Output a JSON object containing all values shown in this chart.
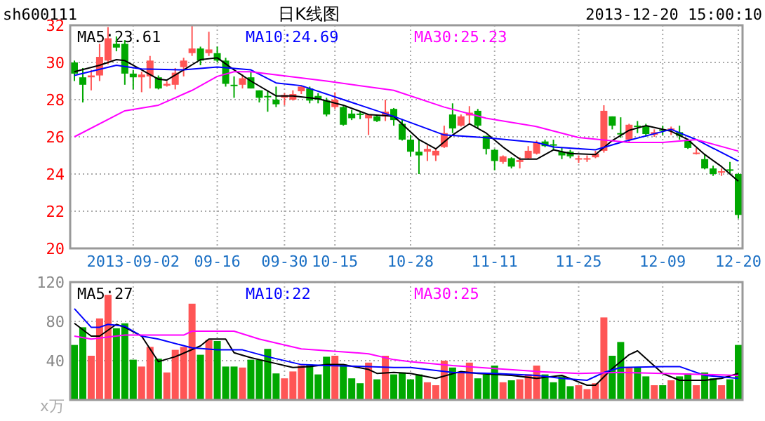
{
  "chart_data": [
    {
      "type": "candlestick",
      "title": "日K线图",
      "annotations": [
        "sh600111",
        "2013-12-20 15:00:10"
      ],
      "ylim": [
        20,
        32
      ],
      "yticks": [
        20,
        22,
        24,
        26,
        28,
        30,
        32
      ],
      "grid": true,
      "legend": "top",
      "categories": [
        null,
        null,
        null,
        null,
        null,
        null,
        null,
        "2013-09-02",
        null,
        null,
        null,
        null,
        null,
        null,
        null,
        null,
        null,
        "09-16",
        null,
        null,
        null,
        null,
        null,
        null,
        null,
        "09-30",
        null,
        null,
        null,
        null,
        null,
        "10-15",
        null,
        null,
        null,
        null,
        null,
        null,
        null,
        null,
        "10-28",
        null,
        null,
        null,
        null,
        null,
        null,
        null,
        null,
        null,
        "11-11",
        null,
        null,
        null,
        null,
        null,
        null,
        null,
        null,
        null,
        "11-25",
        null,
        null,
        null,
        null,
        null,
        null,
        null,
        null,
        null,
        "12-09",
        null,
        null,
        null,
        null,
        null,
        null,
        null,
        null,
        "12-20"
      ],
      "ohlc": [
        [
          30.0,
          30.1,
          29.0,
          29.4
        ],
        [
          29.2,
          29.7,
          27.85,
          28.8
        ],
        [
          29.2,
          29.6,
          28.5,
          29.3
        ],
        [
          29.3,
          31.0,
          29.0,
          30.3
        ],
        [
          30.1,
          31.9,
          29.9,
          31.3
        ],
        [
          31.0,
          31.4,
          30.6,
          30.8
        ],
        [
          31.0,
          31.2,
          28.8,
          29.4
        ],
        [
          29.4,
          29.6,
          28.55,
          29.2
        ],
        [
          29.2,
          29.5,
          28.4,
          29.35
        ],
        [
          29.25,
          30.35,
          28.6,
          30.1
        ],
        [
          29.2,
          29.3,
          28.55,
          28.6
        ],
        [
          28.75,
          29.0,
          28.7,
          28.85
        ],
        [
          28.8,
          29.7,
          28.55,
          29.45
        ],
        [
          29.75,
          30.25,
          29.25,
          30.1
        ],
        [
          30.5,
          32.0,
          30.35,
          30.75
        ],
        [
          30.75,
          30.85,
          29.85,
          30.1
        ],
        [
          30.5,
          31.65,
          30.35,
          30.7
        ],
        [
          30.5,
          30.85,
          30.0,
          30.1
        ],
        [
          30.1,
          30.25,
          28.7,
          28.85
        ],
        [
          28.8,
          29.25,
          28.1,
          28.75
        ],
        [
          28.8,
          29.35,
          28.6,
          29.15
        ],
        [
          29.2,
          29.5,
          28.6,
          28.6
        ],
        [
          28.5,
          28.5,
          27.85,
          28.1
        ],
        [
          28.2,
          28.5,
          27.35,
          28.15
        ],
        [
          28.0,
          28.7,
          27.6,
          27.75
        ],
        [
          28.1,
          28.35,
          27.7,
          28.25
        ],
        [
          28.0,
          28.5,
          27.95,
          28.3
        ],
        [
          28.45,
          28.75,
          28.3,
          28.7
        ],
        [
          28.6,
          28.7,
          27.8,
          27.95
        ],
        [
          28.2,
          28.35,
          27.8,
          28.0
        ],
        [
          27.95,
          28.1,
          27.1,
          27.2
        ],
        [
          27.6,
          28.4,
          27.5,
          28.0
        ],
        [
          27.6,
          27.65,
          26.6,
          26.65
        ],
        [
          27.25,
          27.45,
          26.9,
          27.0
        ],
        [
          27.25,
          27.4,
          26.95,
          27.2
        ],
        [
          27.0,
          27.2,
          26.1,
          27.2
        ],
        [
          27.1,
          27.15,
          26.8,
          26.85
        ],
        [
          27.1,
          28.0,
          26.85,
          27.35
        ],
        [
          27.5,
          27.55,
          26.6,
          26.9
        ],
        [
          26.7,
          26.95,
          25.8,
          25.85
        ],
        [
          25.85,
          26.1,
          24.95,
          25.2
        ],
        [
          25.2,
          25.85,
          24.0,
          25.0
        ],
        [
          25.2,
          25.55,
          24.7,
          25.35
        ],
        [
          25.0,
          25.4,
          24.7,
          25.25
        ],
        [
          25.45,
          26.6,
          25.4,
          26.2
        ],
        [
          27.2,
          27.8,
          26.2,
          26.45
        ],
        [
          26.6,
          27.2,
          26.55,
          27.1
        ],
        [
          27.15,
          27.65,
          26.65,
          27.3
        ],
        [
          27.4,
          27.5,
          26.45,
          26.6
        ],
        [
          26.05,
          26.05,
          25.05,
          25.35
        ],
        [
          25.3,
          25.35,
          24.2,
          24.7
        ],
        [
          24.65,
          25.0,
          24.55,
          24.95
        ],
        [
          24.85,
          24.9,
          24.3,
          24.4
        ],
        [
          24.65,
          24.9,
          24.3,
          24.75
        ],
        [
          24.85,
          25.5,
          24.8,
          25.25
        ],
        [
          25.1,
          25.8,
          25.05,
          25.7
        ],
        [
          25.75,
          25.85,
          25.45,
          25.5
        ],
        [
          25.6,
          25.85,
          25.3,
          25.55
        ],
        [
          25.2,
          25.4,
          24.8,
          25.0
        ],
        [
          25.2,
          25.3,
          24.85,
          24.95
        ],
        [
          24.8,
          25.0,
          24.6,
          24.85
        ],
        [
          24.8,
          25.0,
          24.65,
          24.85
        ],
        [
          24.9,
          25.25,
          24.85,
          25.1
        ],
        [
          25.25,
          27.7,
          25.15,
          27.4
        ],
        [
          27.1,
          27.1,
          26.4,
          26.6
        ],
        [
          26.2,
          27.05,
          25.95,
          26.15
        ],
        [
          25.85,
          26.7,
          25.7,
          26.65
        ],
        [
          26.6,
          26.85,
          26.2,
          26.55
        ],
        [
          26.6,
          26.7,
          26.0,
          26.15
        ],
        [
          26.1,
          26.4,
          26.0,
          26.25
        ],
        [
          26.4,
          26.6,
          26.1,
          26.35
        ],
        [
          26.35,
          26.55,
          26.1,
          26.45
        ],
        [
          26.25,
          26.6,
          25.85,
          26.05
        ],
        [
          25.85,
          25.9,
          25.35,
          25.4
        ],
        [
          25.1,
          25.4,
          25.05,
          25.15
        ],
        [
          24.8,
          25.05,
          24.25,
          24.3
        ],
        [
          24.3,
          24.45,
          23.9,
          24.0
        ],
        [
          24.1,
          24.3,
          23.9,
          24.15
        ],
        [
          24.25,
          24.65,
          24.0,
          24.2
        ],
        [
          24.0,
          24.05,
          21.6,
          21.8
        ]
      ],
      "colors": [
        "#00a800",
        "#00a800",
        "#ff5555",
        "#ff5555",
        "#ff5555",
        "#00a800",
        "#00a800",
        "#00a800",
        "#ff5555",
        "#ff5555",
        "#00a800",
        "#ff5555",
        "#ff5555",
        "#ff5555",
        "#ff5555",
        "#00a800",
        "#ff5555",
        "#00a800",
        "#00a800",
        "#00a800",
        "#ff5555",
        "#00a800",
        "#00a800",
        "#00a800",
        "#00a800",
        "#ff5555",
        "#ff5555",
        "#ff5555",
        "#00a800",
        "#00a800",
        "#00a800",
        "#ff5555",
        "#00a800",
        "#00a800",
        "#00a800",
        "#ff5555",
        "#00a800",
        "#ff5555",
        "#00a800",
        "#00a800",
        "#00a800",
        "#00a800",
        "#ff5555",
        "#ff5555",
        "#ff5555",
        "#00a800",
        "#ff5555",
        "#ff5555",
        "#00a800",
        "#00a800",
        "#00a800",
        "#ff5555",
        "#00a800",
        "#ff5555",
        "#ff5555",
        "#ff5555",
        "#00a800",
        "#00a800",
        "#00a800",
        "#00a800",
        "#ff5555",
        "#ff5555",
        "#ff5555",
        "#ff5555",
        "#00a800",
        "#00a800",
        "#ff5555",
        "#00a800",
        "#00a800",
        "#ff5555",
        "#00a800",
        "#ff5555",
        "#00a800",
        "#00a800",
        "#ff5555",
        "#00a800",
        "#00a800",
        "#ff5555",
        "#00a800",
        "#00a800"
      ],
      "series": [
        {
          "name": "MA5:23.61",
          "type": "line",
          "color": "#000000",
          "values": [
            29.5,
            null,
            null,
            29.85,
            null,
            30.15,
            30.1,
            null,
            29.6,
            null,
            29.1,
            29.05,
            null,
            29.6,
            null,
            30.15,
            null,
            30.25,
            null,
            29.6,
            null,
            29.0,
            null,
            null,
            28.2,
            null,
            28.2,
            null,
            null,
            28.05,
            null,
            null,
            27.7,
            null,
            null,
            27.2,
            null,
            null,
            27.1,
            null,
            null,
            25.85,
            null,
            25.35,
            null,
            26.1,
            null,
            26.7,
            null,
            26.2,
            null,
            25.45,
            null,
            24.8,
            null,
            24.8,
            null,
            25.3,
            null,
            25.1,
            null,
            null,
            25.05,
            null,
            25.8,
            null,
            26.35,
            null,
            26.6,
            null,
            null,
            26.3,
            null,
            25.85,
            null,
            25.05,
            null,
            24.4,
            null,
            23.61
          ]
        },
        {
          "name": "MA10:24.69",
          "type": "line",
          "color": "#0000ff",
          "values": [
            29.3,
            null,
            null,
            null,
            null,
            29.85,
            null,
            null,
            29.65,
            null,
            null,
            null,
            null,
            29.6,
            null,
            null,
            null,
            29.75,
            null,
            null,
            null,
            29.6,
            null,
            null,
            28.9,
            null,
            null,
            28.75,
            null,
            null,
            null,
            null,
            28.0,
            null,
            null,
            null,
            null,
            null,
            27.1,
            null,
            null,
            null,
            null,
            null,
            26.1,
            null,
            null,
            null,
            null,
            25.95,
            null,
            null,
            null,
            null,
            null,
            25.7,
            null,
            25.45,
            null,
            null,
            null,
            null,
            25.3,
            null,
            null,
            25.7,
            null,
            null,
            null,
            null,
            null,
            26.4,
            null,
            null,
            25.85,
            null,
            null,
            null,
            null,
            24.69
          ]
        },
        {
          "name": "MA30:25.23",
          "type": "line",
          "color": "#ff00ff",
          "values": [
            26.0,
            null,
            null,
            null,
            null,
            null,
            27.4,
            null,
            null,
            null,
            27.7,
            null,
            null,
            null,
            28.5,
            null,
            null,
            29.25,
            null,
            29.5,
            null,
            29.5,
            null,
            null,
            null,
            null,
            null,
            null,
            null,
            null,
            29.0,
            null,
            null,
            null,
            null,
            null,
            null,
            null,
            28.5,
            null,
            null,
            null,
            null,
            null,
            27.6,
            null,
            null,
            null,
            null,
            27.0,
            null,
            null,
            null,
            null,
            null,
            26.55,
            null,
            null,
            null,
            null,
            25.96,
            null,
            null,
            null,
            null,
            null,
            25.7,
            null,
            null,
            null,
            25.7,
            null,
            null,
            null,
            25.85,
            null,
            null,
            null,
            null,
            25.23
          ]
        }
      ]
    },
    {
      "type": "bar",
      "ylabel": "x万",
      "ylim": [
        0,
        120
      ],
      "yticks": [
        40,
        80,
        120
      ],
      "grid": true,
      "legend": "top",
      "tick_labels": "y",
      "categories": [
        null,
        null,
        null,
        null,
        null,
        null,
        null,
        null,
        null,
        null,
        null,
        null,
        null,
        null,
        null,
        null,
        null,
        null,
        null,
        null,
        null,
        null,
        null,
        null,
        null,
        null,
        null,
        null,
        null,
        null,
        null,
        null,
        null,
        null,
        null,
        null,
        null,
        null,
        null,
        null,
        null,
        null,
        null,
        null,
        null,
        null,
        null,
        null,
        null,
        null,
        null,
        null,
        null,
        null,
        null,
        null,
        null,
        null,
        null,
        null,
        null,
        null,
        null,
        null,
        null,
        null,
        null,
        null,
        null,
        null,
        null,
        null,
        null,
        null,
        null,
        null,
        null,
        null,
        null,
        null
      ],
      "series": [
        {
          "type": "bar",
          "values": [
            56,
            74,
            45,
            83,
            107,
            73,
            78,
            41,
            34,
            54,
            42,
            28,
            51,
            54,
            98,
            46,
            61,
            60,
            34,
            34,
            33,
            41,
            41,
            52,
            27,
            22,
            29,
            35,
            36,
            26,
            44,
            45,
            36,
            22,
            17,
            38,
            21,
            45,
            26,
            28,
            21,
            26,
            18,
            15,
            40,
            33,
            28,
            38,
            22,
            26,
            35,
            18,
            20,
            21,
            26,
            35,
            26,
            18,
            24,
            14,
            15,
            11,
            17,
            84,
            45,
            59,
            33,
            33,
            24,
            15,
            15,
            20,
            24,
            27,
            15,
            28,
            22,
            15,
            21,
            56
          ],
          "colors": [
            "#00a800",
            "#00a800",
            "#ff5555",
            "#ff5555",
            "#ff5555",
            "#00a800",
            "#00a800",
            "#00a800",
            "#ff5555",
            "#ff5555",
            "#00a800",
            "#ff5555",
            "#ff5555",
            "#ff5555",
            "#ff5555",
            "#00a800",
            "#ff5555",
            "#00a800",
            "#00a800",
            "#00a800",
            "#ff5555",
            "#00a800",
            "#00a800",
            "#00a800",
            "#00a800",
            "#ff5555",
            "#ff5555",
            "#ff5555",
            "#00a800",
            "#00a800",
            "#00a800",
            "#ff5555",
            "#00a800",
            "#00a800",
            "#00a800",
            "#ff5555",
            "#00a800",
            "#ff5555",
            "#00a800",
            "#00a800",
            "#00a800",
            "#00a800",
            "#ff5555",
            "#ff5555",
            "#ff5555",
            "#00a800",
            "#ff5555",
            "#ff5555",
            "#00a800",
            "#00a800",
            "#00a800",
            "#ff5555",
            "#00a800",
            "#ff5555",
            "#ff5555",
            "#ff5555",
            "#00a800",
            "#00a800",
            "#00a800",
            "#00a800",
            "#ff5555",
            "#ff5555",
            "#ff5555",
            "#ff5555",
            "#00a800",
            "#00a800",
            "#ff5555",
            "#00a800",
            "#00a800",
            "#ff5555",
            "#00a800",
            "#ff5555",
            "#00a800",
            "#00a800",
            "#ff5555",
            "#00a800",
            "#00a800",
            "#ff5555",
            "#00a800",
            "#00a800"
          ]
        },
        {
          "name": "MA5:27",
          "type": "line",
          "color": "#000000",
          "values": [
            78,
            null,
            65,
            65,
            null,
            77,
            74,
            null,
            65,
            null,
            39,
            null,
            44,
            null,
            null,
            55,
            62,
            null,
            62,
            48,
            null,
            43,
            null,
            39,
            null,
            null,
            33,
            null,
            34,
            null,
            36,
            null,
            36,
            null,
            null,
            31,
            27,
            null,
            28,
            null,
            27,
            null,
            null,
            22,
            null,
            null,
            29,
            null,
            27,
            null,
            null,
            null,
            25,
            null,
            null,
            22,
            null,
            null,
            25,
            null,
            null,
            15,
            15,
            null,
            32,
            null,
            46,
            50,
            null,
            null,
            27,
            null,
            20,
            null,
            null,
            20,
            null,
            22,
            null,
            27
          ]
        },
        {
          "name": "MA10:22",
          "type": "line",
          "color": "#0000ff",
          "values": [
            93,
            null,
            74,
            74,
            77,
            null,
            75,
            null,
            65,
            null,
            62,
            null,
            null,
            null,
            53,
            null,
            null,
            51,
            null,
            null,
            51,
            null,
            null,
            44,
            null,
            null,
            null,
            36,
            null,
            null,
            35,
            null,
            null,
            null,
            null,
            34,
            null,
            null,
            33,
            null,
            33,
            null,
            null,
            null,
            null,
            28,
            null,
            null,
            null,
            null,
            27,
            null,
            null,
            null,
            null,
            25,
            null,
            null,
            22,
            null,
            null,
            20,
            null,
            28,
            null,
            33,
            null,
            null,
            null,
            null,
            34,
            null,
            34,
            null,
            null,
            25,
            null,
            null,
            null,
            22
          ]
        },
        {
          "name": "MA30:25",
          "type": "line",
          "color": "#ff00ff",
          "values": [
            65,
            null,
            62,
            null,
            null,
            null,
            66,
            null,
            null,
            null,
            null,
            null,
            null,
            66,
            70,
            null,
            null,
            null,
            null,
            70,
            null,
            null,
            62,
            null,
            null,
            null,
            null,
            52,
            null,
            null,
            null,
            null,
            49,
            null,
            null,
            47,
            null,
            null,
            41,
            null,
            39,
            null,
            null,
            null,
            null,
            35,
            null,
            null,
            null,
            null,
            32,
            null,
            null,
            null,
            null,
            29,
            null,
            null,
            null,
            null,
            27,
            null,
            null,
            null,
            null,
            28,
            null,
            null,
            null,
            null,
            27,
            null,
            null,
            null,
            null,
            null,
            null,
            null,
            null,
            25
          ]
        }
      ]
    }
  ]
}
